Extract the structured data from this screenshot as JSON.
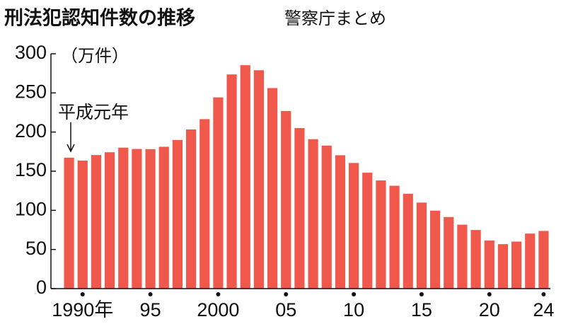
{
  "chart_data": {
    "type": "bar",
    "title": "刑法犯認知件数の推移",
    "subtitle": "警察庁まとめ",
    "y_label": "（万件）",
    "annotation": "平成元年",
    "categories": [
      null,
      "1990年",
      null,
      null,
      null,
      null,
      "95",
      null,
      null,
      null,
      null,
      "2000",
      null,
      null,
      null,
      null,
      "05",
      null,
      null,
      null,
      null,
      "10",
      null,
      null,
      null,
      null,
      "15",
      null,
      null,
      null,
      null,
      "20",
      null,
      null,
      null,
      "24"
    ],
    "values": [
      167.3,
      163.6,
      170.7,
      174.2,
      180.1,
      178.4,
      178.2,
      181.2,
      189.9,
      203.3,
      216.5,
      244.3,
      273.6,
      285.4,
      279.0,
      256.2,
      226.9,
      205.1,
      190.9,
      182.7,
      170.4,
      160.5,
      148.1,
      138.2,
      131.4,
      121.2,
      109.9,
      99.6,
      91.5,
      81.7,
      74.9,
      61.4,
      56.8,
      60.1,
      70.3,
      73.7
    ],
    "color": "#f0584c",
    "ylim": [
      0,
      300
    ],
    "yticks": [
      0,
      50,
      100,
      150,
      200,
      250,
      300
    ]
  }
}
